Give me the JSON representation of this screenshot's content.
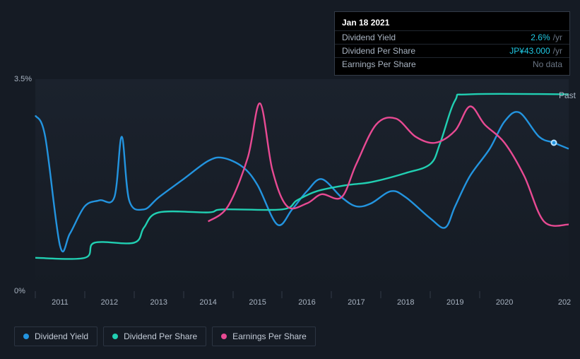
{
  "chart": {
    "type": "line",
    "background_color": "#151b24",
    "plot_bg_gradient": [
      "#1b222d",
      "#151b24"
    ],
    "x_axis": {
      "min": 2010.5,
      "max": 2021.3,
      "ticks": [
        2011,
        2012,
        2013,
        2014,
        2015,
        2016,
        2017,
        2018,
        2019,
        2020
      ],
      "cutoff_label": "202",
      "label_color": "#a9b4c2",
      "label_fontsize": 11
    },
    "y_axis": {
      "min": 0,
      "max": 3.5,
      "ticks": [
        {
          "v": 0,
          "label": "0%"
        },
        {
          "v": 3.5,
          "label": "3.5%"
        }
      ],
      "label_color": "#a9b4c2",
      "label_fontsize": 11
    },
    "past_marker_label": "Past",
    "series": [
      {
        "key": "dividend_yield",
        "label": "Dividend Yield",
        "color": "#2394df",
        "points": [
          [
            2010.5,
            2.9
          ],
          [
            2010.7,
            2.55
          ],
          [
            2011.0,
            0.75
          ],
          [
            2011.2,
            0.95
          ],
          [
            2011.5,
            1.4
          ],
          [
            2011.8,
            1.5
          ],
          [
            2012.1,
            1.55
          ],
          [
            2012.25,
            2.55
          ],
          [
            2012.4,
            1.5
          ],
          [
            2012.7,
            1.35
          ],
          [
            2013.0,
            1.55
          ],
          [
            2013.5,
            1.85
          ],
          [
            2014.0,
            2.15
          ],
          [
            2014.3,
            2.2
          ],
          [
            2014.7,
            2.05
          ],
          [
            2015.0,
            1.75
          ],
          [
            2015.4,
            1.1
          ],
          [
            2015.7,
            1.35
          ],
          [
            2016.0,
            1.65
          ],
          [
            2016.3,
            1.85
          ],
          [
            2016.7,
            1.55
          ],
          [
            2017.0,
            1.4
          ],
          [
            2017.3,
            1.45
          ],
          [
            2017.7,
            1.65
          ],
          [
            2018.0,
            1.55
          ],
          [
            2018.5,
            1.2
          ],
          [
            2018.8,
            1.05
          ],
          [
            2019.0,
            1.4
          ],
          [
            2019.3,
            1.9
          ],
          [
            2019.7,
            2.35
          ],
          [
            2020.0,
            2.8
          ],
          [
            2020.3,
            2.95
          ],
          [
            2020.7,
            2.55
          ],
          [
            2021.0,
            2.45
          ],
          [
            2021.3,
            2.35
          ]
        ]
      },
      {
        "key": "dividend_per_share",
        "label": "Dividend Per Share",
        "color": "#21cfb2",
        "points": [
          [
            2010.5,
            0.55
          ],
          [
            2011.5,
            0.55
          ],
          [
            2011.7,
            0.8
          ],
          [
            2012.5,
            0.8
          ],
          [
            2012.7,
            1.05
          ],
          [
            2013.0,
            1.3
          ],
          [
            2014.0,
            1.3
          ],
          [
            2014.3,
            1.35
          ],
          [
            2015.5,
            1.35
          ],
          [
            2015.8,
            1.5
          ],
          [
            2016.2,
            1.65
          ],
          [
            2016.8,
            1.75
          ],
          [
            2017.3,
            1.8
          ],
          [
            2018.0,
            1.95
          ],
          [
            2018.5,
            2.1
          ],
          [
            2018.7,
            2.45
          ],
          [
            2019.0,
            3.15
          ],
          [
            2019.3,
            3.25
          ],
          [
            2021.3,
            3.25
          ]
        ]
      },
      {
        "key": "earnings_per_share",
        "label": "Earnings Per Share",
        "color": "#e84a93",
        "points": [
          [
            2014.0,
            1.15
          ],
          [
            2014.4,
            1.4
          ],
          [
            2014.8,
            2.2
          ],
          [
            2015.05,
            3.1
          ],
          [
            2015.3,
            2.0
          ],
          [
            2015.6,
            1.4
          ],
          [
            2016.0,
            1.45
          ],
          [
            2016.3,
            1.6
          ],
          [
            2016.7,
            1.55
          ],
          [
            2017.0,
            2.1
          ],
          [
            2017.4,
            2.75
          ],
          [
            2017.8,
            2.85
          ],
          [
            2018.2,
            2.55
          ],
          [
            2018.6,
            2.45
          ],
          [
            2019.0,
            2.65
          ],
          [
            2019.3,
            3.05
          ],
          [
            2019.6,
            2.75
          ],
          [
            2020.0,
            2.45
          ],
          [
            2020.4,
            1.9
          ],
          [
            2020.8,
            1.15
          ],
          [
            2021.3,
            1.1
          ]
        ]
      }
    ]
  },
  "tooltip": {
    "title": "Jan 18 2021",
    "rows": [
      {
        "k": "Dividend Yield",
        "v": "2.6%",
        "unit": "/yr",
        "accent": true
      },
      {
        "k": "Dividend Per Share",
        "v": "JP¥43.000",
        "unit": "/yr",
        "accent": true
      },
      {
        "k": "Earnings Per Share",
        "v": "No data",
        "nodata": true
      }
    ]
  },
  "cursor": {
    "x": 2021.0,
    "series_key": "dividend_yield"
  }
}
